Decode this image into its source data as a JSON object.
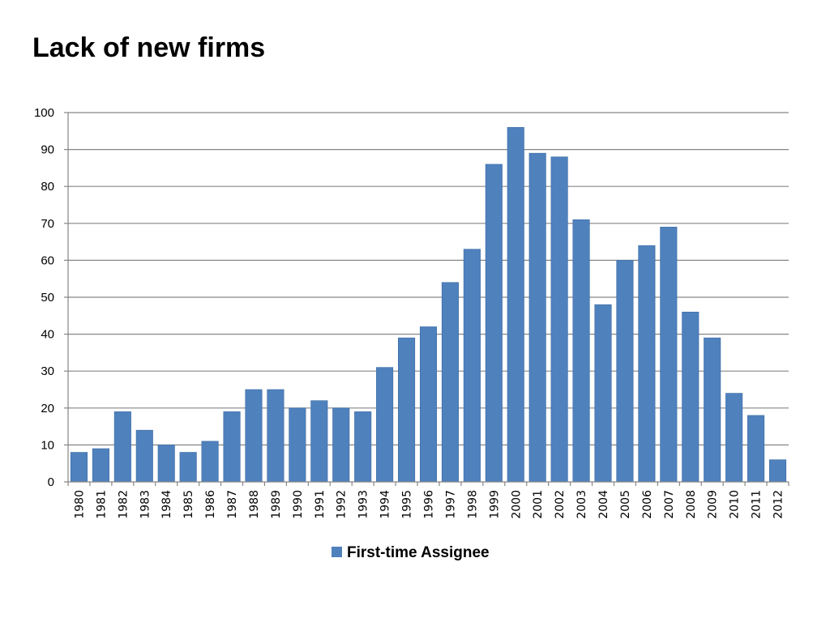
{
  "slide": {
    "title": "Lack of new firms"
  },
  "colors": {
    "bar": "#4F81BD",
    "bar_edge": "#3A6AA3",
    "grid": "#868686",
    "axis": "#868686"
  },
  "chart_data": {
    "type": "bar",
    "title": "",
    "xlabel": "",
    "ylabel": "",
    "ylim": [
      0,
      100
    ],
    "yticks": [
      0,
      10,
      20,
      30,
      40,
      50,
      60,
      70,
      80,
      90,
      100
    ],
    "grid": true,
    "legend_position": "bottom",
    "categories": [
      "1980",
      "1981",
      "1982",
      "1983",
      "1984",
      "1985",
      "1986",
      "1987",
      "1988",
      "1989",
      "1990",
      "1991",
      "1992",
      "1993",
      "1994",
      "1995",
      "1996",
      "1997",
      "1998",
      "1999",
      "2000",
      "2001",
      "2002",
      "2003",
      "2004",
      "2005",
      "2006",
      "2007",
      "2008",
      "2009",
      "2010",
      "2011",
      "2012"
    ],
    "series": [
      {
        "name": "First-time Assignee",
        "values": [
          8,
          9,
          19,
          14,
          10,
          8,
          11,
          19,
          25,
          25,
          20,
          22,
          20,
          19,
          31,
          39,
          42,
          54,
          63,
          86,
          96,
          89,
          88,
          71,
          48,
          60,
          64,
          69,
          46,
          39,
          24,
          18,
          6
        ]
      }
    ]
  }
}
